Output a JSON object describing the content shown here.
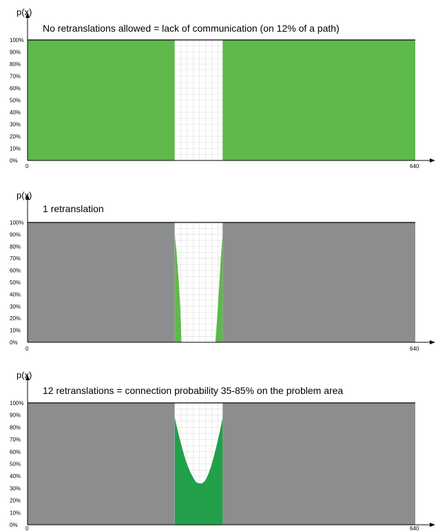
{
  "chart_data": [
    {
      "type": "area",
      "title": "No retranslations allowed  = lack of communication (on  12% of a path)",
      "ylabel": "p(x)",
      "x_ticks": [
        "0",
        "640"
      ],
      "y_ticks": [
        "0%",
        "10%",
        "20%",
        "30%",
        "40%",
        "50%",
        "60%",
        "70%",
        "80%",
        "90%",
        "100%"
      ],
      "xlim": [
        0,
        640
      ],
      "ylim": [
        0,
        100
      ],
      "background_fill": "#5cb94a",
      "gap": [
        243,
        322
      ],
      "gap_curve": [
        {
          "x": 243,
          "y": 0
        },
        {
          "x": 322,
          "y": 0
        }
      ],
      "curve_color": "#5cb94a"
    },
    {
      "type": "area",
      "title": "1 retranslation",
      "ylabel": "p(x)",
      "x_ticks": [
        "0",
        "640"
      ],
      "y_ticks": [
        "0%",
        "10%",
        "20%",
        "30%",
        "40%",
        "50%",
        "60%",
        "70%",
        "80%",
        "90%",
        "100%"
      ],
      "xlim": [
        0,
        640
      ],
      "ylim": [
        0,
        100
      ],
      "background_fill": "#8c8d8f",
      "gap": [
        243,
        322
      ],
      "gap_curve": [
        {
          "x": 243,
          "y": 90
        },
        {
          "x": 246,
          "y": 75
        },
        {
          "x": 249,
          "y": 55
        },
        {
          "x": 252,
          "y": 30
        },
        {
          "x": 254,
          "y": 0
        },
        {
          "x": 310,
          "y": 0
        },
        {
          "x": 313,
          "y": 20
        },
        {
          "x": 316,
          "y": 45
        },
        {
          "x": 319,
          "y": 70
        },
        {
          "x": 322,
          "y": 90
        }
      ],
      "curve_color": "#5cb94a"
    },
    {
      "type": "area",
      "title": "12 retranslations = connection probability 35-85% on the problem area",
      "ylabel": "p(x)",
      "x_ticks": [
        "0",
        "640"
      ],
      "y_ticks": [
        "0%",
        "10%",
        "20%",
        "30%",
        "40%",
        "50%",
        "60%",
        "70%",
        "80%",
        "90%",
        "100%"
      ],
      "xlim": [
        0,
        640
      ],
      "ylim": [
        0,
        100
      ],
      "background_fill": "#8c8d8f",
      "gap": [
        243,
        322
      ],
      "gap_curve": [
        {
          "x": 243,
          "y": 88
        },
        {
          "x": 248,
          "y": 77
        },
        {
          "x": 253,
          "y": 67
        },
        {
          "x": 258,
          "y": 58
        },
        {
          "x": 263,
          "y": 50
        },
        {
          "x": 268,
          "y": 44
        },
        {
          "x": 273,
          "y": 39
        },
        {
          "x": 278,
          "y": 35
        },
        {
          "x": 283,
          "y": 34
        },
        {
          "x": 288,
          "y": 34
        },
        {
          "x": 293,
          "y": 36
        },
        {
          "x": 298,
          "y": 41
        },
        {
          "x": 303,
          "y": 48
        },
        {
          "x": 308,
          "y": 57
        },
        {
          "x": 313,
          "y": 67
        },
        {
          "x": 318,
          "y": 78
        },
        {
          "x": 322,
          "y": 88
        }
      ],
      "curve_color": "#22a049"
    }
  ]
}
